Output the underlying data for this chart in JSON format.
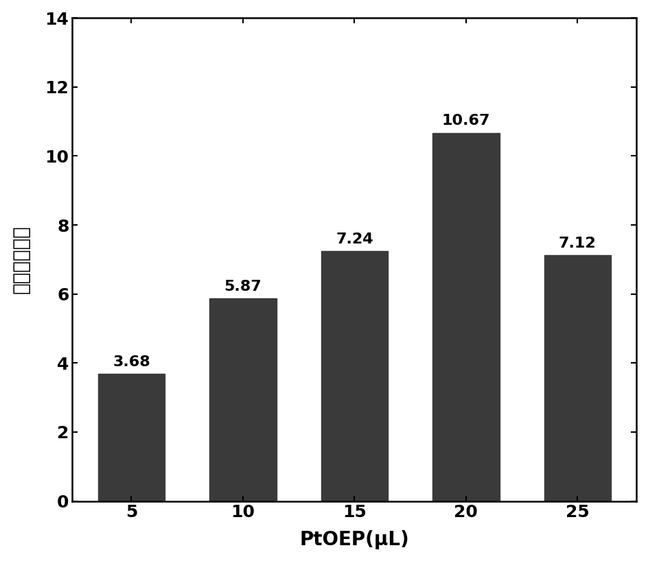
{
  "categories": [
    "5",
    "10",
    "15",
    "20",
    "25"
  ],
  "values": [
    3.68,
    5.87,
    7.24,
    10.67,
    7.12
  ],
  "bar_color": "#3a3a3a",
  "bar_width": 0.6,
  "xlabel": "PtOEP(μL)",
  "ylabel": "荧光增强因子",
  "ylim": [
    0,
    14
  ],
  "yticks": [
    0,
    2,
    4,
    6,
    8,
    10,
    12,
    14
  ],
  "title": "",
  "xlabel_fontsize": 20,
  "ylabel_fontsize": 20,
  "tick_fontsize": 18,
  "label_fontsize": 16,
  "background_color": "#ffffff"
}
